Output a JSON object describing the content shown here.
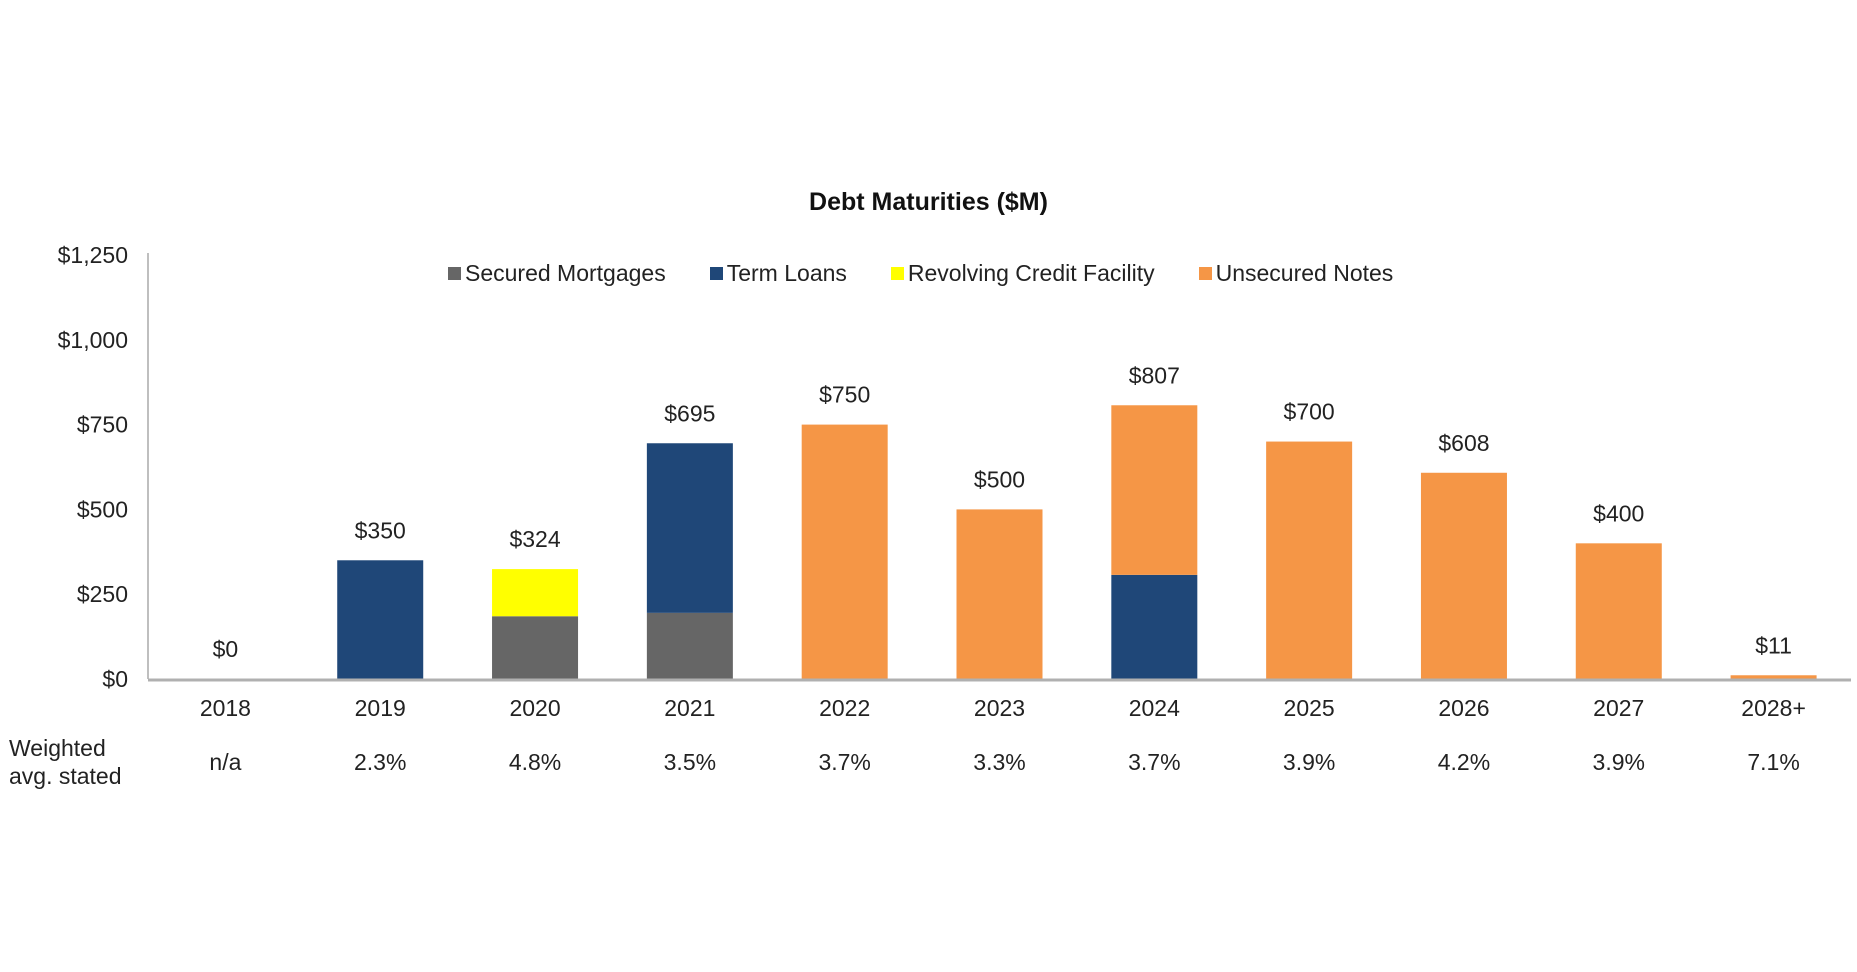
{
  "chart_data": {
    "type": "bar",
    "stacked": true,
    "title": "Debt Maturities ($M)",
    "categories": [
      "2018",
      "2019",
      "2020",
      "2021",
      "2022",
      "2023",
      "2024",
      "2025",
      "2026",
      "2027",
      "2028+"
    ],
    "series": [
      {
        "name": "Secured Mortgages",
        "color": "#666666",
        "values": [
          0,
          0,
          185,
          195,
          0,
          0,
          0,
          0,
          0,
          0,
          0
        ]
      },
      {
        "name": "Term Loans",
        "color": "#1F4778",
        "values": [
          0,
          350,
          0,
          500,
          0,
          0,
          307,
          0,
          0,
          0,
          0
        ]
      },
      {
        "name": "Revolving Credit Facility",
        "color": "#FFFF00",
        "values": [
          0,
          0,
          139,
          0,
          0,
          0,
          0,
          0,
          0,
          0,
          0
        ]
      },
      {
        "name": "Unsecured Notes",
        "color": "#F59646",
        "values": [
          0,
          0,
          0,
          0,
          750,
          500,
          500,
          700,
          608,
          400,
          11
        ]
      }
    ],
    "totals_labels": [
      "$0",
      "$350",
      "$324",
      "$695",
      "$750",
      "$500",
      "$807",
      "$700",
      "$608",
      "$400",
      "$11"
    ],
    "yticks": [
      "$0",
      "$250",
      "$500",
      "$750",
      "$1,000",
      "$1,250"
    ],
    "ytick_values": [
      0,
      250,
      500,
      750,
      1000,
      1250
    ],
    "ylim": [
      0,
      1250
    ],
    "grid": false,
    "legend_position": "top",
    "row_label": "Weighted avg. stated",
    "row_label_lines": [
      "Weighted",
      "avg. stated"
    ],
    "rates": [
      "n/a",
      "2.3%",
      "4.8%",
      "3.5%",
      "3.7%",
      "3.3%",
      "3.7%",
      "3.9%",
      "4.2%",
      "3.9%",
      "7.1%"
    ]
  }
}
